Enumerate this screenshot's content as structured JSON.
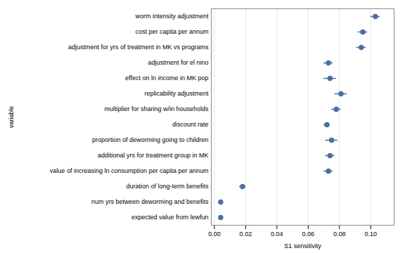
{
  "chart_data": {
    "type": "dot",
    "orientation": "horizontal",
    "xlabel": "S1 sensitivity",
    "ylabel": "variable",
    "categories": [
      "worm intensity adjustment",
      "cost per capita per annum",
      "adjustment for yrs of treatment in MK vs programs",
      "adjustment for el nino",
      "effect on ln income in MK pop",
      "replicability adjustment",
      "multiplier for sharing w/in households",
      "discount rate",
      "proportion of deworming going to children",
      "additional yrs for treatment group in MK",
      "value of increasing ln consumption per capita per annum",
      "duration of long-term benefits",
      "num yrs between deworming and benefits",
      "expected value from lewfun"
    ],
    "values": [
      0.103,
      0.095,
      0.094,
      0.073,
      0.074,
      0.081,
      0.078,
      0.072,
      0.075,
      0.074,
      0.073,
      0.018,
      0.004,
      0.004
    ],
    "error_low": [
      0.003,
      0.003,
      0.003,
      0.003,
      0.004,
      0.004,
      0.003,
      0.002,
      0.004,
      0.003,
      0.003,
      0.002,
      0.001,
      0.001
    ],
    "error_high": [
      0.003,
      0.003,
      0.003,
      0.003,
      0.004,
      0.004,
      0.003,
      0.002,
      0.004,
      0.003,
      0.003,
      0.002,
      0.001,
      0.001
    ],
    "color": "#4c6fa5",
    "marker": "circle",
    "xlim": [
      -0.002,
      0.115
    ],
    "xticks": [
      {
        "value": 0.0,
        "label": "0.00"
      },
      {
        "value": 0.02,
        "label": "0.02"
      },
      {
        "value": 0.04,
        "label": "0.04"
      },
      {
        "value": 0.06,
        "label": "0.06"
      },
      {
        "value": 0.08,
        "label": "0.08"
      },
      {
        "value": 0.1,
        "label": "0.10"
      }
    ],
    "grid": "x"
  }
}
